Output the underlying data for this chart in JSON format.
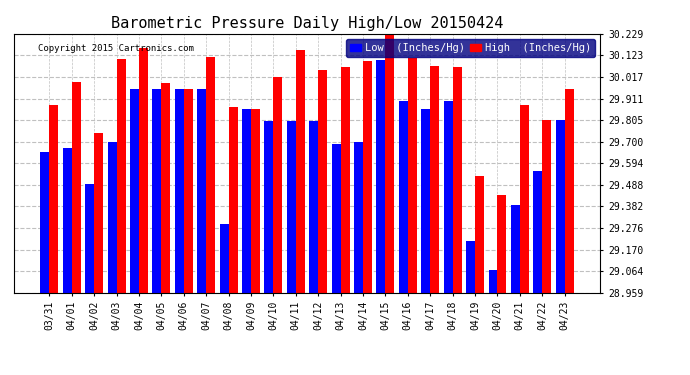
{
  "title": "Barometric Pressure Daily High/Low 20150424",
  "copyright": "Copyright 2015 Cartronics.com",
  "legend_low": "Low  (Inches/Hg)",
  "legend_high": "High  (Inches/Hg)",
  "categories": [
    "03/31",
    "04/01",
    "04/02",
    "04/03",
    "04/04",
    "04/05",
    "04/06",
    "04/07",
    "04/08",
    "04/09",
    "04/10",
    "04/11",
    "04/12",
    "04/13",
    "04/14",
    "04/15",
    "04/16",
    "04/17",
    "04/18",
    "04/19",
    "04/20",
    "04/21",
    "04/22",
    "04/23"
  ],
  "low_values": [
    29.65,
    29.668,
    29.49,
    29.7,
    29.958,
    29.958,
    29.958,
    29.958,
    29.295,
    29.86,
    29.8,
    29.8,
    29.8,
    29.69,
    29.7,
    30.1,
    29.9,
    29.86,
    29.9,
    29.212,
    29.07,
    29.39,
    29.555,
    29.805
  ],
  "high_values": [
    29.88,
    29.99,
    29.74,
    30.105,
    30.16,
    29.985,
    29.958,
    30.115,
    29.87,
    29.86,
    30.015,
    30.15,
    30.05,
    30.065,
    30.095,
    30.225,
    30.11,
    30.07,
    30.065,
    29.53,
    29.44,
    29.88,
    29.805,
    29.96
  ],
  "low_color": "#0000ff",
  "high_color": "#ff0000",
  "bg_color": "#ffffff",
  "plot_bg_color": "#ffffff",
  "grid_color": "#c0c0c0",
  "ylim_min": 28.959,
  "ylim_max": 30.229,
  "yticks": [
    28.959,
    29.064,
    29.17,
    29.276,
    29.382,
    29.488,
    29.594,
    29.7,
    29.805,
    29.911,
    30.017,
    30.123,
    30.229
  ],
  "title_fontsize": 11,
  "copyright_fontsize": 6.5,
  "tick_fontsize": 7,
  "legend_fontsize": 7.5,
  "bar_width": 0.4
}
